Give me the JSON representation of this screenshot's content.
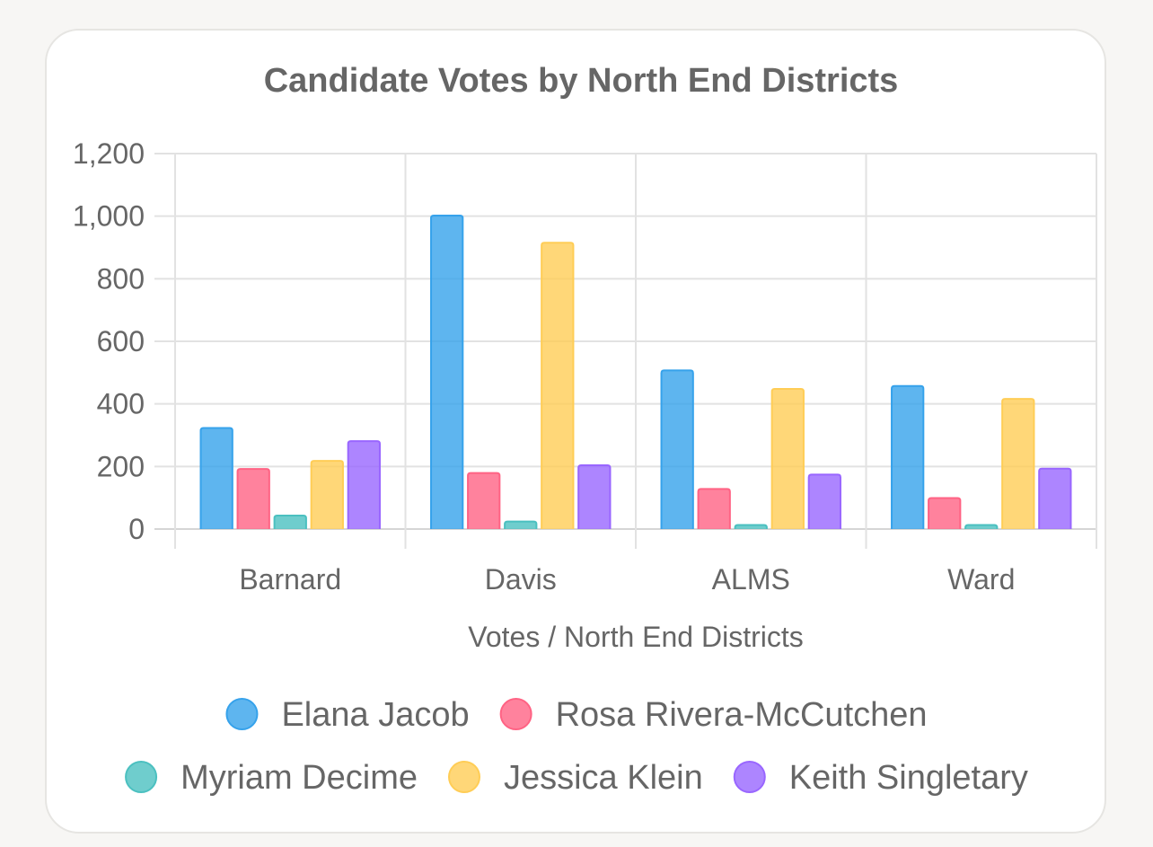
{
  "chart_data": {
    "type": "bar",
    "title": "Candidate Votes by North End Districts",
    "xlabel": "Votes / North End Districts",
    "ylabel": "",
    "categories": [
      "Barnard",
      "Davis",
      "ALMS",
      "Ward"
    ],
    "ylim": [
      0,
      1200
    ],
    "yticks": [
      0,
      200,
      400,
      600,
      800,
      1000,
      1200
    ],
    "ytick_labels": [
      "0",
      "200",
      "400",
      "600",
      "800",
      "1,000",
      "1,200"
    ],
    "grid": true,
    "legend_position": "bottom",
    "series": [
      {
        "name": "Elana Jacob",
        "color": "#36a2eb",
        "values": [
          323,
          1002,
          507,
          457
        ]
      },
      {
        "name": "Rosa Rivera-McCutchen",
        "color": "#ff6384",
        "values": [
          192,
          179,
          128,
          99
        ]
      },
      {
        "name": "Myriam Decime",
        "color": "#4bc0c0",
        "values": [
          43,
          24,
          13,
          13
        ]
      },
      {
        "name": "Jessica Klein",
        "color": "#ffcd56",
        "values": [
          218,
          915,
          448,
          416
        ]
      },
      {
        "name": "Keith Singletary",
        "color": "#9966ff",
        "values": [
          281,
          204,
          174,
          193
        ]
      }
    ]
  }
}
